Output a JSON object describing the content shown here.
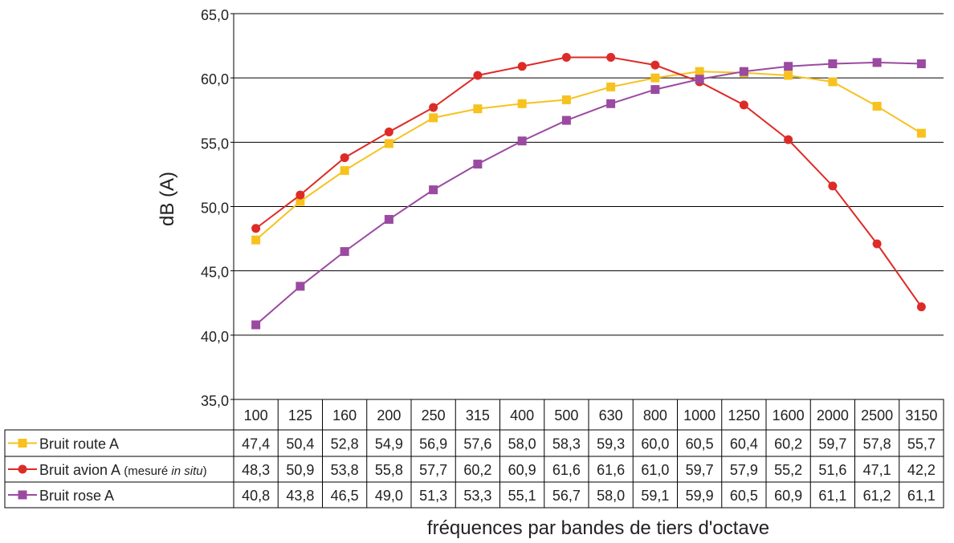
{
  "chart_data": {
    "type": "line",
    "title": "",
    "xlabel": "fréquences par bandes de tiers d'octave",
    "ylabel": "dB (A)",
    "ylim": [
      35,
      65
    ],
    "yticks": [
      "35,0",
      "40,0",
      "45,0",
      "50,0",
      "55,0",
      "60,0",
      "65,0"
    ],
    "ytick_values": [
      35,
      40,
      45,
      50,
      55,
      60,
      65
    ],
    "grid": true,
    "legend_position": "data table below plot",
    "categories": [
      "100",
      "125",
      "160",
      "200",
      "250",
      "315",
      "400",
      "500",
      "630",
      "800",
      "1000",
      "1250",
      "1600",
      "2000",
      "2500",
      "3150"
    ],
    "series": [
      {
        "name": "Bruit route A",
        "name_suffix": "",
        "color": "#F7C21F",
        "marker": "square",
        "values": [
          47.4,
          50.4,
          52.8,
          54.9,
          56.9,
          57.6,
          58.0,
          58.3,
          59.3,
          60.0,
          60.5,
          60.4,
          60.2,
          59.7,
          57.8,
          55.7
        ],
        "labels": [
          "47,4",
          "50,4",
          "52,8",
          "54,9",
          "56,9",
          "57,6",
          "58,0",
          "58,3",
          "59,3",
          "60,0",
          "60,5",
          "60,4",
          "60,2",
          "59,7",
          "57,8",
          "55,7"
        ]
      },
      {
        "name": "Bruit avion A",
        "name_suffix_open": "(mesuré ",
        "name_suffix_italic": "in situ",
        "name_suffix_close": ")",
        "color": "#DD2B27",
        "marker": "circle",
        "values": [
          48.3,
          50.9,
          53.8,
          55.8,
          57.7,
          60.2,
          60.9,
          61.6,
          61.6,
          61.0,
          59.7,
          57.9,
          55.2,
          51.6,
          47.1,
          42.2
        ],
        "labels": [
          "48,3",
          "50,9",
          "53,8",
          "55,8",
          "57,7",
          "60,2",
          "60,9",
          "61,6",
          "61,6",
          "61,0",
          "59,7",
          "57,9",
          "55,2",
          "51,6",
          "47,1",
          "42,2"
        ]
      },
      {
        "name": "Bruit rose A",
        "name_suffix": "",
        "color": "#9A4AA0",
        "marker": "square",
        "values": [
          40.8,
          43.8,
          46.5,
          49.0,
          51.3,
          53.3,
          55.1,
          56.7,
          58.0,
          59.1,
          59.9,
          60.5,
          60.9,
          61.1,
          61.2,
          61.1
        ],
        "labels": [
          "40,8",
          "43,8",
          "46,5",
          "49,0",
          "51,3",
          "53,3",
          "55,1",
          "56,7",
          "58,0",
          "59,1",
          "59,9",
          "60,5",
          "60,9",
          "61,1",
          "61,2",
          "61,1"
        ]
      }
    ]
  }
}
